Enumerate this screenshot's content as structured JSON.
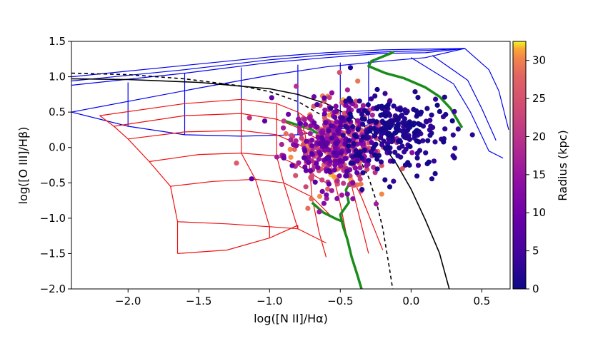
{
  "chart_data": {
    "type": "scatter",
    "xlabel": "log([N II]/Hα)",
    "ylabel": "log([O III]/Hβ)",
    "xlim": [
      -2.4,
      0.7
    ],
    "ylim": [
      -2.0,
      1.5
    ],
    "xticks": [
      {
        "v": -2.0,
        "label": "−2.0"
      },
      {
        "v": -1.5,
        "label": "−1.5"
      },
      {
        "v": -1.0,
        "label": "−1.0"
      },
      {
        "v": -0.5,
        "label": "−0.5"
      },
      {
        "v": 0.0,
        "label": "0.0"
      },
      {
        "v": 0.5,
        "label": "0.5"
      }
    ],
    "yticks": [
      {
        "v": 1.5,
        "label": "1.5"
      },
      {
        "v": 1.0,
        "label": "1.0"
      },
      {
        "v": 0.5,
        "label": "0.5"
      },
      {
        "v": 0.0,
        "label": "0.0"
      },
      {
        "v": -0.5,
        "label": "−0.5"
      },
      {
        "v": -1.0,
        "label": "−1.0"
      },
      {
        "v": -1.5,
        "label": "−1.5"
      },
      {
        "v": -2.0,
        "label": "−2.0"
      }
    ],
    "colorbar": {
      "label": "Radius (kpc)",
      "range": [
        0,
        32.5
      ],
      "colormap": "plasma",
      "ticks": [
        {
          "v": 0,
          "label": "0"
        },
        {
          "v": 5,
          "label": "5"
        },
        {
          "v": 10,
          "label": "10"
        },
        {
          "v": 15,
          "label": "15"
        },
        {
          "v": 20,
          "label": "20"
        },
        {
          "v": 25,
          "label": "25"
        },
        {
          "v": 30,
          "label": "30"
        }
      ]
    },
    "curves": [
      {
        "name": "Kauffmann demarcation",
        "style": "dashed",
        "color": "#000000",
        "points": [
          [
            -2.4,
            1.05
          ],
          [
            -2.0,
            1.03
          ],
          [
            -1.6,
            0.97
          ],
          [
            -1.2,
            0.87
          ],
          [
            -1.0,
            0.79
          ],
          [
            -0.8,
            0.65
          ],
          [
            -0.6,
            0.42
          ],
          [
            -0.5,
            0.24
          ],
          [
            -0.4,
            -0.02
          ],
          [
            -0.3,
            -0.42
          ],
          [
            -0.25,
            -0.73
          ],
          [
            -0.2,
            -1.14
          ],
          [
            -0.15,
            -1.74
          ],
          [
            -0.13,
            -2.0
          ]
        ]
      },
      {
        "name": "Kewley demarcation",
        "style": "solid",
        "color": "#000000",
        "points": [
          [
            -2.4,
            0.97
          ],
          [
            -2.0,
            0.96
          ],
          [
            -1.5,
            0.92
          ],
          [
            -1.0,
            0.83
          ],
          [
            -0.8,
            0.75
          ],
          [
            -0.6,
            0.62
          ],
          [
            -0.4,
            0.41
          ],
          [
            -0.3,
            0.25
          ],
          [
            -0.2,
            0.04
          ],
          [
            -0.1,
            -0.24
          ],
          [
            0.0,
            -0.59
          ],
          [
            0.1,
            -1.02
          ],
          [
            0.2,
            -1.49
          ],
          [
            0.27,
            -2.0
          ]
        ]
      },
      {
        "name": "green track SF",
        "style": "solid",
        "color": "#1a8c1a",
        "points": [
          [
            -0.9,
            0.38
          ],
          [
            -0.7,
            0.25
          ],
          [
            -0.55,
            0.05
          ],
          [
            -0.48,
            -0.22
          ],
          [
            -0.42,
            -0.45
          ],
          [
            -0.46,
            -0.6
          ],
          [
            -0.44,
            -0.78
          ],
          [
            -0.5,
            -0.95
          ],
          [
            -0.48,
            -1.12
          ],
          [
            -0.45,
            -1.3
          ],
          [
            -0.42,
            -1.55
          ],
          [
            -0.38,
            -1.8
          ],
          [
            -0.35,
            -2.0
          ]
        ]
      },
      {
        "name": "green track SF lower",
        "style": "solid",
        "color": "#1a8c1a",
        "points": [
          [
            -0.7,
            -0.78
          ],
          [
            -0.62,
            -0.92
          ],
          [
            -0.52,
            -1.02
          ],
          [
            -0.48,
            -1.05
          ]
        ]
      },
      {
        "name": "green track AGN",
        "style": "solid",
        "color": "#1a8c1a",
        "points": [
          [
            -0.12,
            1.35
          ],
          [
            -0.28,
            1.22
          ],
          [
            -0.3,
            1.15
          ],
          [
            -0.18,
            1.05
          ],
          [
            -0.05,
            0.98
          ],
          [
            0.1,
            0.85
          ],
          [
            0.2,
            0.72
          ],
          [
            0.28,
            0.55
          ],
          [
            0.36,
            0.28
          ]
        ]
      }
    ],
    "grids": [
      {
        "name": "AGN photoionization grid",
        "color": "#0000ee",
        "rows": [
          [
            [
              -2.4,
              0.5
            ],
            [
              -1.5,
              0.84
            ],
            [
              -1.0,
              1.02
            ],
            [
              -0.6,
              1.14
            ],
            [
              -0.2,
              1.22
            ],
            [
              0.1,
              1.27
            ],
            [
              0.38,
              1.4
            ]
          ],
          [
            [
              -2.4,
              0.88
            ],
            [
              -1.6,
              1.05
            ],
            [
              -1.0,
              1.2
            ],
            [
              -0.6,
              1.27
            ],
            [
              -0.2,
              1.33
            ],
            [
              0.1,
              1.34
            ],
            [
              0.38,
              1.4
            ]
          ],
          [
            [
              -2.4,
              0.94
            ],
            [
              -1.6,
              1.1
            ],
            [
              -1.0,
              1.24
            ],
            [
              -0.6,
              1.31
            ],
            [
              -0.2,
              1.35
            ],
            [
              0.1,
              1.37
            ],
            [
              0.38,
              1.4
            ]
          ],
          [
            [
              -2.4,
              1.0
            ],
            [
              -1.6,
              1.16
            ],
            [
              -1.0,
              1.28
            ],
            [
              -0.6,
              1.34
            ],
            [
              -0.2,
              1.38
            ],
            [
              0.1,
              1.39
            ],
            [
              0.38,
              1.4
            ]
          ],
          [
            [
              -2.4,
              0.5
            ],
            [
              -2.0,
              0.3
            ],
            [
              -1.6,
              0.18
            ],
            [
              -1.2,
              0.16
            ],
            [
              -0.8,
              0.18
            ],
            [
              -0.5,
              0.26
            ],
            [
              -0.3,
              0.32
            ]
          ]
        ],
        "cols": [
          [
            [
              -2.0,
              0.92
            ],
            [
              -2.0,
              0.3
            ]
          ],
          [
            [
              -1.6,
              1.05
            ],
            [
              -1.6,
              0.18
            ]
          ],
          [
            [
              -1.2,
              1.13
            ],
            [
              -1.2,
              0.16
            ]
          ],
          [
            [
              -0.8,
              1.17
            ],
            [
              -0.8,
              0.18
            ]
          ],
          [
            [
              -0.5,
              1.2
            ],
            [
              -0.5,
              0.26
            ]
          ],
          [
            [
              -0.3,
              1.22
            ],
            [
              -0.3,
              0.32
            ]
          ],
          [
            [
              0.0,
              1.27
            ],
            [
              0.3,
              0.9
            ],
            [
              0.42,
              0.5
            ],
            [
              0.55,
              -0.05
            ],
            [
              0.65,
              -0.15
            ]
          ],
          [
            [
              0.15,
              1.3
            ],
            [
              0.4,
              0.95
            ],
            [
              0.5,
              0.55
            ],
            [
              0.6,
              0.1
            ]
          ],
          [
            [
              0.38,
              1.4
            ],
            [
              0.55,
              1.1
            ],
            [
              0.62,
              0.8
            ],
            [
              0.69,
              0.25
            ]
          ]
        ]
      },
      {
        "name": "SF photoionization grid",
        "color": "#ee1111",
        "rows": [
          [
            [
              -2.2,
              0.45
            ],
            [
              -1.6,
              0.62
            ],
            [
              -1.2,
              0.68
            ],
            [
              -0.95,
              0.62
            ],
            [
              -0.8,
              0.5
            ],
            [
              -0.65,
              0.3
            ],
            [
              -0.55,
              0.05
            ]
          ],
          [
            [
              -2.1,
              0.3
            ],
            [
              -1.6,
              0.45
            ],
            [
              -1.2,
              0.48
            ],
            [
              -0.95,
              0.4
            ],
            [
              -0.8,
              0.28
            ],
            [
              -0.6,
              0.05
            ]
          ],
          [
            [
              -2.0,
              0.12
            ],
            [
              -1.6,
              0.22
            ],
            [
              -1.2,
              0.24
            ],
            [
              -0.95,
              0.18
            ],
            [
              -0.8,
              0.05
            ],
            [
              -0.6,
              -0.2
            ]
          ],
          [
            [
              -1.85,
              -0.2
            ],
            [
              -1.5,
              -0.1
            ],
            [
              -1.2,
              -0.08
            ],
            [
              -0.95,
              -0.12
            ],
            [
              -0.8,
              -0.25
            ],
            [
              -0.6,
              -0.5
            ]
          ],
          [
            [
              -1.7,
              -0.55
            ],
            [
              -1.4,
              -0.48
            ],
            [
              -1.1,
              -0.45
            ],
            [
              -0.9,
              -0.5
            ],
            [
              -0.7,
              -0.7
            ],
            [
              -0.55,
              -1.0
            ]
          ],
          [
            [
              -1.65,
              -1.05
            ],
            [
              -1.3,
              -1.08
            ],
            [
              -1.0,
              -1.12
            ],
            [
              -0.8,
              -1.15
            ],
            [
              -0.6,
              -1.35
            ]
          ],
          [
            [
              -1.65,
              -1.5
            ],
            [
              -1.3,
              -1.45
            ],
            [
              -1.0,
              -1.28
            ],
            [
              -0.8,
              -1.1
            ]
          ]
        ],
        "cols": [
          [
            [
              -2.2,
              0.45
            ],
            [
              -2.1,
              0.3
            ],
            [
              -2.0,
              0.12
            ],
            [
              -1.85,
              -0.2
            ],
            [
              -1.7,
              -0.55
            ],
            [
              -1.65,
              -1.05
            ],
            [
              -1.65,
              -1.5
            ]
          ],
          [
            [
              -1.2,
              0.68
            ],
            [
              -1.2,
              0.48
            ],
            [
              -1.2,
              0.24
            ],
            [
              -1.2,
              -0.08
            ],
            [
              -1.1,
              -0.45
            ],
            [
              -1.0,
              -1.12
            ],
            [
              -1.0,
              -1.28
            ]
          ],
          [
            [
              -0.95,
              0.62
            ],
            [
              -0.95,
              0.4
            ],
            [
              -0.95,
              0.18
            ],
            [
              -0.95,
              -0.12
            ],
            [
              -0.9,
              -0.5
            ],
            [
              -0.8,
              -1.15
            ],
            [
              -0.8,
              -1.1
            ]
          ],
          [
            [
              -0.8,
              0.5
            ],
            [
              -0.75,
              0.2
            ],
            [
              -0.72,
              -0.2
            ],
            [
              -0.7,
              -0.7
            ],
            [
              -0.65,
              -1.2
            ],
            [
              -0.6,
              -1.55
            ]
          ],
          [
            [
              -0.65,
              0.3
            ],
            [
              -0.6,
              0.0
            ],
            [
              -0.55,
              -0.4
            ],
            [
              -0.5,
              -0.8
            ],
            [
              -0.45,
              -1.3
            ],
            [
              -0.4,
              -1.7
            ],
            [
              -0.35,
              -2.0
            ]
          ],
          [
            [
              -0.55,
              0.05
            ],
            [
              -0.45,
              -0.3
            ],
            [
              -0.4,
              -0.7
            ],
            [
              -0.35,
              -1.1
            ],
            [
              -0.3,
              -1.5
            ]
          ],
          [
            [
              -0.45,
              -0.3
            ],
            [
              -0.35,
              -0.7
            ],
            [
              -0.25,
              -1.2
            ],
            [
              -0.2,
              -1.45
            ]
          ]
        ]
      }
    ],
    "scatter_clusters": [
      {
        "name": "star-forming points",
        "count": 520,
        "x_center": -0.55,
        "y_center": 0.05,
        "x_spread": 0.17,
        "y_spread": 0.32,
        "radius_range": [
          6,
          32
        ]
      },
      {
        "name": "AGN points",
        "count": 260,
        "x_center": -0.12,
        "y_center": 0.25,
        "x_spread": 0.2,
        "y_spread": 0.25,
        "radius_range": [
          0,
          4
        ]
      }
    ]
  }
}
